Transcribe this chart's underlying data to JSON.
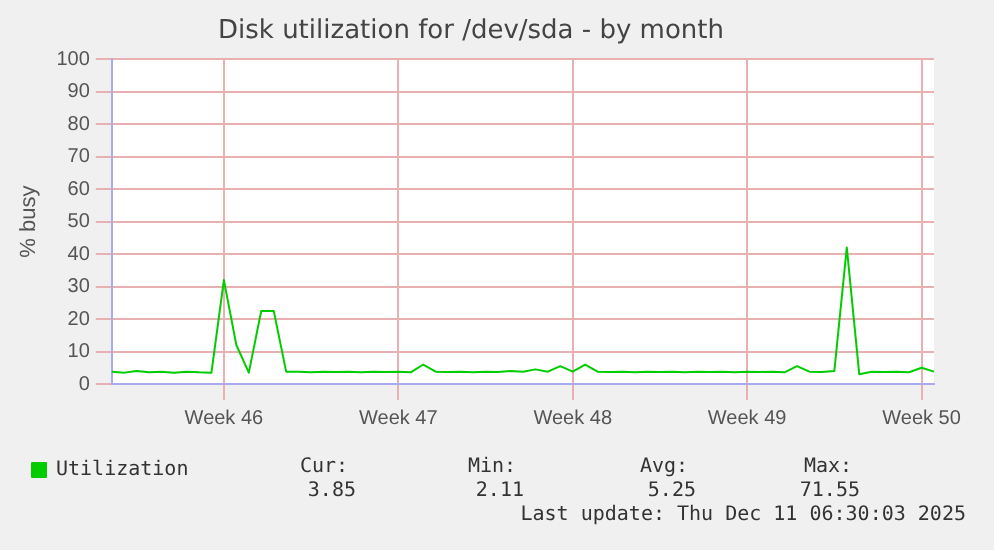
{
  "chart_data": {
    "type": "line",
    "title": "Disk utilization for /dev/sda - by month",
    "ylabel": "% busy",
    "categories": [
      null,
      null,
      null,
      null,
      null,
      null,
      null,
      null,
      null,
      "Week 46",
      null,
      null,
      null,
      null,
      null,
      null,
      null,
      null,
      null,
      null,
      null,
      null,
      null,
      "Week 47",
      null,
      null,
      null,
      null,
      null,
      null,
      null,
      null,
      null,
      null,
      null,
      null,
      null,
      "Week 48",
      null,
      null,
      null,
      null,
      null,
      null,
      null,
      null,
      null,
      null,
      null,
      null,
      null,
      "Week 49",
      null,
      null,
      null,
      null,
      null,
      null,
      null,
      null,
      null,
      null,
      null,
      null,
      null,
      "Week 50",
      null
    ],
    "ylim": [
      0,
      100
    ],
    "yticks": [
      0,
      10,
      20,
      30,
      40,
      50,
      60,
      70,
      80,
      90,
      100
    ],
    "grid": true,
    "legend": "bottom",
    "marker": "none",
    "line_style": "solid",
    "series": [
      {
        "name": "Utilization",
        "color": "#00cc00",
        "values": [
          3.8,
          3.5,
          4,
          3.6,
          3.8,
          3.5,
          3.8,
          3.6,
          3.5,
          32,
          12,
          3.5,
          22.5,
          22.5,
          3.8,
          3.8,
          3.6,
          3.8,
          3.7,
          3.8,
          3.6,
          3.8,
          3.7,
          3.8,
          3.6,
          6,
          3.8,
          3.7,
          3.8,
          3.6,
          3.8,
          3.7,
          4,
          3.8,
          4.5,
          3.8,
          5.5,
          3.8,
          6,
          3.8,
          3.7,
          3.8,
          3.6,
          3.8,
          3.7,
          3.8,
          3.6,
          3.8,
          3.7,
          3.8,
          3.6,
          3.8,
          3.7,
          3.8,
          3.6,
          5.5,
          3.8,
          3.7,
          4,
          42,
          3,
          3.8,
          3.7,
          3.8,
          3.6,
          5,
          3.8
        ]
      }
    ],
    "annotations": [
      "Cur:",
      "3.85",
      "Min:",
      "2.11",
      "Avg:",
      "5.25",
      "Max:",
      "71.55",
      "Last update: Thu Dec 11 06:30:03 2025"
    ]
  }
}
